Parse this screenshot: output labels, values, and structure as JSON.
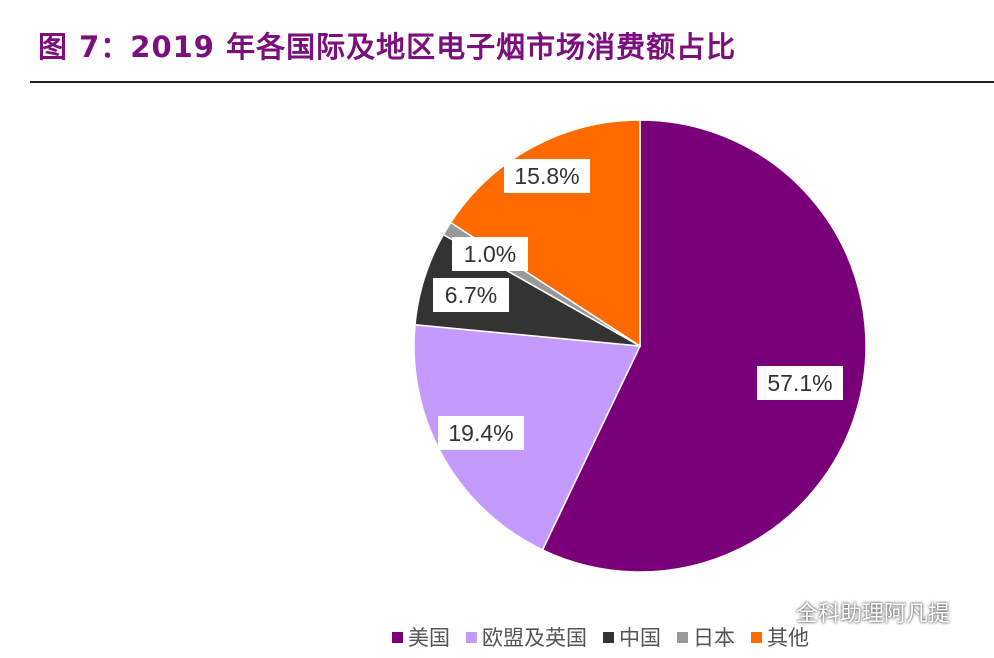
{
  "title": "图 7：2019 年各国际及地区电子烟市场消费额占比",
  "chart_data": {
    "type": "pie",
    "unit": "%",
    "categories": [
      "美国",
      "欧盟及英国",
      "中国",
      "日本",
      "其他"
    ],
    "values": [
      57.1,
      19.4,
      6.7,
      1.0,
      15.8
    ],
    "labels": [
      "57.1%",
      "19.4%",
      "6.7%",
      "1.0%",
      "15.8%"
    ],
    "colors": [
      "#7a007a",
      "#c59aff",
      "#333333",
      "#999999",
      "#ff6a00"
    ],
    "start": "12 o'clock",
    "direction": "clockwise",
    "legend_position": "bottom"
  },
  "watermark": {
    "text": "全科助理阿凡提",
    "icon": "wechat-icon"
  }
}
